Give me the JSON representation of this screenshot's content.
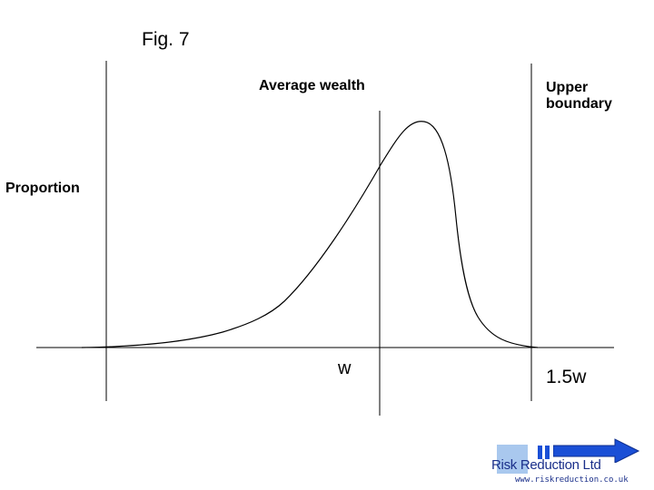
{
  "figure": {
    "title": "Fig. 7",
    "labels": {
      "average_wealth": "Average wealth",
      "upper_boundary": "Upper boundary",
      "y_axis": "Proportion",
      "w_tick": "w",
      "upper_tick": "1.5w"
    }
  },
  "logo": {
    "name": "Risk Reduction Ltd",
    "url": "www.riskreduction.co.uk",
    "colors": {
      "square": "#a9c8ee",
      "arrow": "#1a4fd6",
      "text": "#1a2f8a"
    }
  },
  "colors": {
    "line": "#000000",
    "background": "#ffffff"
  }
}
